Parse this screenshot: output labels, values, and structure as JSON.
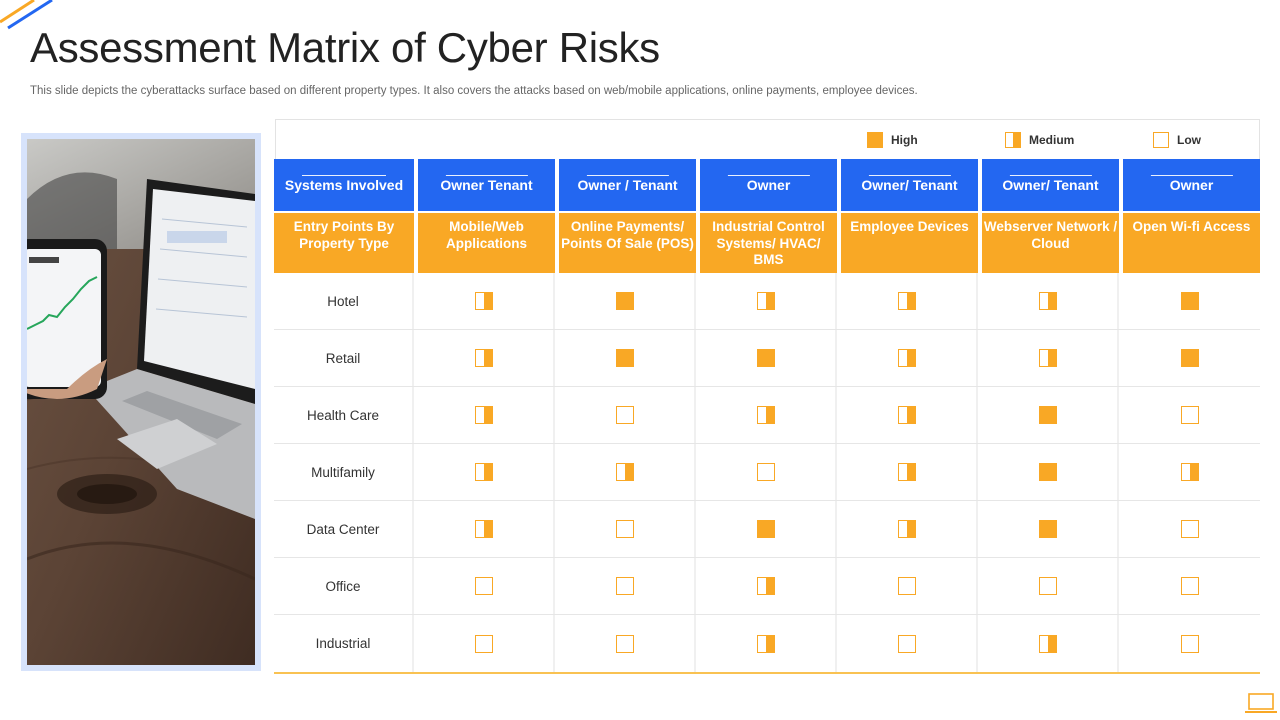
{
  "slide": {
    "title": "Assessment Matrix of Cyber Risks",
    "subtitle": "This slide depicts the cyberattacks surface based on different property types.  It also covers the attacks based on web/mobile applications, online payments, employee devices."
  },
  "legend": {
    "high": "High",
    "medium": "Medium",
    "low": "Low"
  },
  "colors": {
    "blue": "#2367f1",
    "orange": "#f9a825",
    "accent_light": "#d7e3fb"
  },
  "systems": [
    "Systems Involved",
    "Owner Tenant",
    "Owner / Tenant",
    "Owner",
    "Owner/ Tenant",
    "Owner/ Tenant",
    "Owner"
  ],
  "entry_points": [
    "Entry Points By Property Type",
    "Mobile/Web Applications",
    "Online Payments/ Points Of Sale (POS)",
    "Industrial Control Systems/ HVAC/ BMS",
    "Employee Devices",
    "Webserver Network / Cloud",
    "Open Wi-fi Access"
  ],
  "rows": [
    {
      "label": "Hotel",
      "levels": [
        "medium",
        "high",
        "medium",
        "medium",
        "medium",
        "high"
      ]
    },
    {
      "label": "Retail",
      "levels": [
        "medium",
        "high",
        "high",
        "medium",
        "medium",
        "high"
      ]
    },
    {
      "label": "Health Care",
      "levels": [
        "medium",
        "low",
        "medium",
        "medium",
        "high",
        "low"
      ]
    },
    {
      "label": "Multifamily",
      "levels": [
        "medium",
        "medium",
        "low",
        "medium",
        "high",
        "medium"
      ]
    },
    {
      "label": "Data Center",
      "levels": [
        "medium",
        "low",
        "high",
        "medium",
        "high",
        "low"
      ]
    },
    {
      "label": "Office",
      "levels": [
        "low",
        "low",
        "medium",
        "low",
        "low",
        "low"
      ]
    },
    {
      "label": "Industrial",
      "levels": [
        "low",
        "low",
        "medium",
        "low",
        "medium",
        "low"
      ]
    }
  ]
}
